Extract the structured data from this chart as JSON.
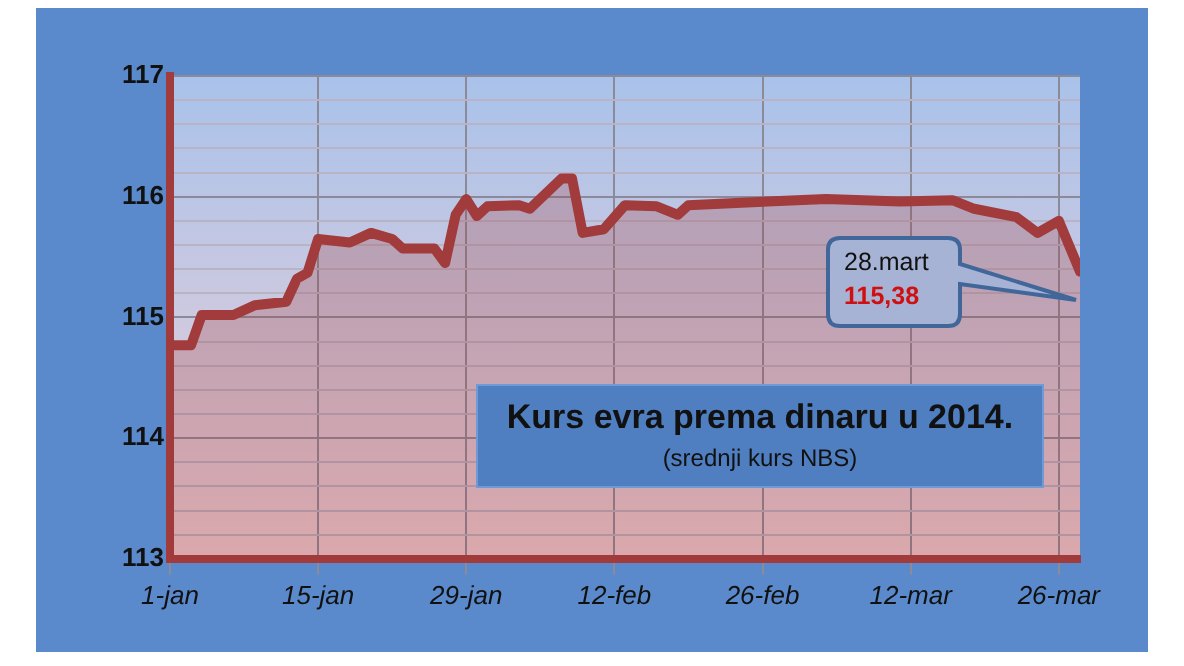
{
  "chart_data": {
    "type": "area",
    "title": "Kurs evra prema dinaru u 2014.",
    "subtitle": "(srednji kurs NBS)",
    "x": [
      "2014-01-01",
      "2014-01-03",
      "2014-01-04",
      "2014-01-07",
      "2014-01-09",
      "2014-01-12",
      "2014-01-13",
      "2014-01-14",
      "2014-01-15",
      "2014-01-18",
      "2014-01-20",
      "2014-01-22",
      "2014-01-23",
      "2014-01-26",
      "2014-01-27",
      "2014-01-28",
      "2014-01-29",
      "2014-01-30",
      "2014-01-31",
      "2014-02-03",
      "2014-02-04",
      "2014-02-07",
      "2014-02-08",
      "2014-02-09",
      "2014-02-11",
      "2014-02-13",
      "2014-02-16",
      "2014-02-18",
      "2014-02-19",
      "2014-02-24",
      "2014-03-04",
      "2014-03-11",
      "2014-03-16",
      "2014-03-18",
      "2014-03-22",
      "2014-03-24",
      "2014-03-26",
      "2014-03-28"
    ],
    "series": [
      {
        "color": "#a23b3b",
        "values": [
          114.77,
          114.77,
          115.02,
          115.02,
          115.1,
          115.13,
          115.32,
          115.37,
          115.65,
          115.62,
          115.7,
          115.65,
          115.57,
          115.57,
          115.45,
          115.85,
          115.98,
          115.84,
          115.92,
          115.93,
          115.9,
          116.15,
          116.15,
          115.7,
          115.73,
          115.93,
          115.92,
          115.85,
          115.93,
          115.95,
          115.98,
          115.96,
          115.97,
          115.9,
          115.83,
          115.7,
          115.8,
          115.38
        ]
      }
    ],
    "xlim": [
      "2014-01-01",
      "2014-03-28"
    ],
    "xticks": [
      {
        "value": "2014-01-01",
        "label": "1-jan"
      },
      {
        "value": "2014-01-15",
        "label": "15-jan"
      },
      {
        "value": "2014-01-29",
        "label": "29-jan"
      },
      {
        "value": "2014-02-12",
        "label": "12-feb"
      },
      {
        "value": "2014-02-26",
        "label": "26-feb"
      },
      {
        "value": "2014-03-12",
        "label": "12-mar"
      },
      {
        "value": "2014-03-26",
        "label": "26-mar"
      }
    ],
    "ylim": [
      113,
      117
    ],
    "yticks": [
      113,
      {
        "value": 113.2,
        "label": null
      },
      {
        "value": 113.4,
        "label": null
      },
      {
        "value": 113.6,
        "label": null
      },
      {
        "value": 113.8,
        "label": null
      },
      114,
      {
        "value": 114.2,
        "label": null
      },
      {
        "value": 114.4,
        "label": null
      },
      {
        "value": 114.6,
        "label": null
      },
      {
        "value": 114.8,
        "label": null
      },
      115,
      {
        "value": 115.2,
        "label": null
      },
      {
        "value": 115.4,
        "label": null
      },
      {
        "value": 115.6,
        "label": null
      },
      {
        "value": 115.8,
        "label": null
      },
      116,
      {
        "value": 116.2,
        "label": null
      },
      {
        "value": 116.4,
        "label": null
      },
      {
        "value": 116.6,
        "label": null
      },
      {
        "value": 116.8,
        "label": null
      },
      117
    ],
    "annotations": [
      "28.mart",
      "115,38"
    ],
    "grid": true,
    "legend": false,
    "marker": "none",
    "line_style": "solid"
  }
}
